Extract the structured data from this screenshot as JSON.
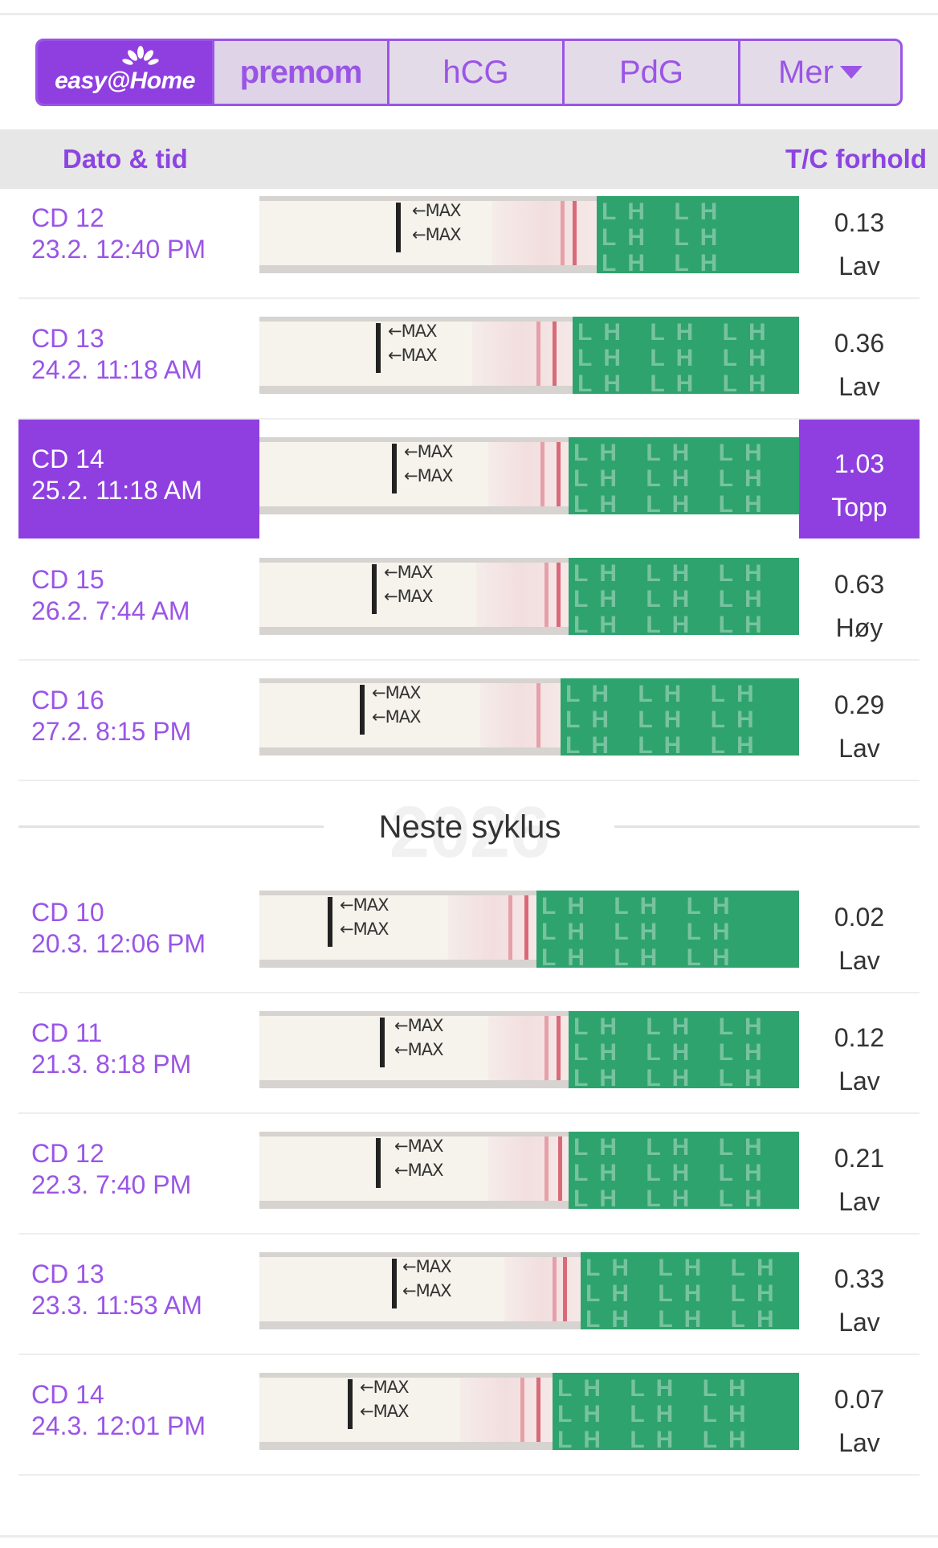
{
  "tabs": {
    "brand": "easy@Home",
    "premom": "premom",
    "hcg": "hCG",
    "pdg": "PdG",
    "more": "Mer"
  },
  "header": {
    "date_col": "Dato & tid",
    "ratio_col": "T/C forhold"
  },
  "strip_text": {
    "max": "←MAX",
    "lh": "LH"
  },
  "cycle1": [
    {
      "cd": "CD 12",
      "datetime": "23.2. 12:40 PM",
      "ratio": "0.13",
      "level": "Lav",
      "highlight": false
    },
    {
      "cd": "CD 13",
      "datetime": "24.2. 11:18 AM",
      "ratio": "0.36",
      "level": "Lav",
      "highlight": false
    },
    {
      "cd": "CD 14",
      "datetime": "25.2. 11:18 AM",
      "ratio": "1.03",
      "level": "Topp",
      "highlight": true
    },
    {
      "cd": "CD 15",
      "datetime": "26.2. 7:44 AM",
      "ratio": "0.63",
      "level": "Høy",
      "highlight": false
    },
    {
      "cd": "CD 16",
      "datetime": "27.2. 8:15 PM",
      "ratio": "0.29",
      "level": "Lav",
      "highlight": false
    }
  ],
  "divider": {
    "year_watermark": "2026",
    "label": "Neste syklus"
  },
  "cycle2": [
    {
      "cd": "CD 10",
      "datetime": "20.3. 12:06 PM",
      "ratio": "0.02",
      "level": "Lav",
      "highlight": false
    },
    {
      "cd": "CD 11",
      "datetime": "21.3. 8:18 PM",
      "ratio": "0.12",
      "level": "Lav",
      "highlight": false
    },
    {
      "cd": "CD 12",
      "datetime": "22.3. 7:40 PM",
      "ratio": "0.21",
      "level": "Lav",
      "highlight": false
    },
    {
      "cd": "CD 13",
      "datetime": "23.3. 11:53 AM",
      "ratio": "0.33",
      "level": "Lav",
      "highlight": false
    },
    {
      "cd": "CD 14",
      "datetime": "24.3. 12:01 PM",
      "ratio": "0.07",
      "level": "Lav",
      "highlight": false
    }
  ],
  "colors": {
    "accent": "#9a55e6",
    "highlight": "#8f3fe0",
    "strip_green": "#2fa36d",
    "test_line": "#d86a7a"
  }
}
